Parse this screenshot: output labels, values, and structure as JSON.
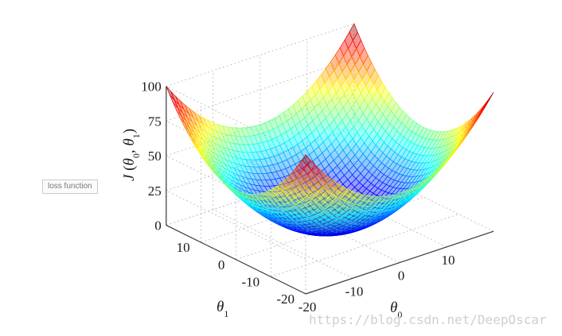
{
  "side_tag": {
    "label": "loss function"
  },
  "watermark": {
    "text": "https://blog.csdn.net/DeepOscar"
  },
  "chart_data": {
    "type": "surface",
    "function": "J = 0.125 * (theta0^2 + theta1^2)",
    "x": {
      "label_base": "θ",
      "label_sub": "0",
      "range": [
        -20,
        20
      ],
      "ticks": [
        -20,
        -10,
        0,
        10
      ]
    },
    "y": {
      "label_base": "θ",
      "label_sub": "1",
      "range": [
        -20,
        20
      ],
      "ticks": [
        -20,
        -10,
        0,
        10
      ]
    },
    "z": {
      "label_main": "J",
      "label_args": [
        "θ",
        "0",
        "θ",
        "1"
      ],
      "range": [
        0,
        100
      ],
      "ticks": [
        0,
        25,
        50,
        75,
        100
      ]
    },
    "grid": true,
    "colormap": "jet",
    "mesh_resolution": 41
  }
}
